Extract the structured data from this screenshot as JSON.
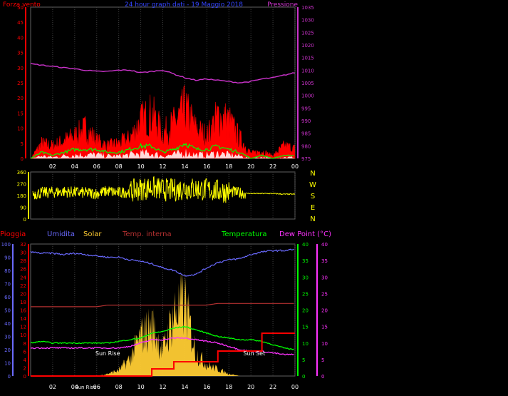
{
  "title": "24 hour graph dati - 19 Maggio 2018",
  "colors": {
    "wind": "#ff0000",
    "gust": "#ff0000",
    "avg": "#00ff00",
    "calm": "#ffffff",
    "pressure": "#cc33cc",
    "dir": "#ffff00",
    "humidity": "#6a6aff",
    "solar": "#ffcc33",
    "indoor": "#b33030",
    "temperature": "#00ff00",
    "dew": "#ff33ff",
    "rain": "#ff0000",
    "ticks_left_top": "#ff0000",
    "ticks_right_top": "#cc33cc"
  },
  "x_ticks": [
    "02",
    "04",
    "06",
    "08",
    "10",
    "12",
    "14",
    "16",
    "18",
    "20",
    "22",
    "00"
  ],
  "chart_data": [
    {
      "type": "line",
      "name": "wind_pressure",
      "title": "24 hour graph dati - 19 Maggio 2018",
      "y_left_label": "Forza vento",
      "y_right_label": "Pressione",
      "ylim_left": [
        0,
        50
      ],
      "ylim_right": [
        975,
        1035
      ],
      "y_left_ticks": [
        "0",
        "5",
        "10",
        "15",
        "20",
        "25",
        "30",
        "35",
        "40",
        "45",
        "50"
      ],
      "y_right_ticks": [
        "975",
        "980",
        "985",
        "990",
        "995",
        "1000",
        "1005",
        "1010",
        "1015",
        "1020",
        "1025",
        "1030",
        "1035"
      ],
      "hours": [
        0,
        1,
        2,
        3,
        4,
        5,
        6,
        7,
        8,
        9,
        10,
        11,
        12,
        13,
        14,
        15,
        16,
        17,
        18,
        19,
        20,
        21,
        22,
        23,
        24
      ],
      "series": [
        {
          "name": "Pressione",
          "values": [
            1012.5,
            1012.0,
            1011.5,
            1011.0,
            1010.5,
            1010.0,
            1009.5,
            1009.5,
            1010.0,
            1010.0,
            1009.0,
            1009.5,
            1010.0,
            1008.5,
            1007.0,
            1006.0,
            1006.5,
            1006.0,
            1005.5,
            1005.0,
            1005.5,
            1006.5,
            1007.0,
            1008.0,
            1009.0
          ]
        },
        {
          "name": "Raffica",
          "values": [
            0,
            6,
            5,
            7,
            9,
            12,
            7,
            5,
            6,
            8,
            15,
            18,
            10,
            14,
            20,
            12,
            9,
            17,
            15,
            8,
            2,
            3,
            1,
            5,
            4
          ]
        },
        {
          "name": "Media",
          "values": [
            0,
            2,
            1,
            2,
            3,
            3,
            3,
            2,
            2,
            3,
            4,
            4,
            2,
            3,
            5,
            3,
            3,
            4,
            3,
            2,
            0,
            1,
            0,
            1,
            1
          ]
        }
      ]
    },
    {
      "type": "scatter",
      "name": "wind_direction",
      "ylim": [
        0,
        360
      ],
      "y_ticks": [
        "0",
        "90",
        "180",
        "270",
        "360"
      ],
      "compass": [
        "N",
        "W",
        "S",
        "E",
        "N"
      ],
      "hours": [
        0,
        1,
        2,
        3,
        4,
        5,
        6,
        7,
        8,
        9,
        10,
        11,
        12,
        13,
        14,
        15,
        16,
        17,
        18,
        19,
        20,
        21,
        22,
        23,
        24
      ],
      "values": [
        190,
        200,
        205,
        210,
        205,
        200,
        195,
        215,
        200,
        210,
        230,
        240,
        225,
        220,
        235,
        230,
        225,
        215,
        210,
        200,
        195,
        195,
        195,
        190,
        190
      ]
    },
    {
      "type": "line",
      "name": "weather",
      "legend": [
        "Pioggia",
        "Umidita",
        "Solar",
        "Temp. interna",
        "Temperatura",
        "Dew Point (°C)"
      ],
      "ylim_left": [
        0,
        100
      ],
      "ylim_right": [
        0,
        40
      ],
      "y_left_ticks": [
        "0",
        "10",
        "20",
        "30",
        "40",
        "50",
        "60",
        "70",
        "80",
        "90",
        "100"
      ],
      "y_left2_ticks": [
        "0",
        "2",
        "4",
        "6",
        "8",
        "10",
        "12",
        "14",
        "16",
        "18",
        "20",
        "22",
        "24",
        "26",
        "28",
        "30",
        "32"
      ],
      "y_right_ticks": [
        "0",
        "5",
        "10",
        "15",
        "20",
        "25",
        "30",
        "35",
        "40"
      ],
      "annotations": [
        "Sun Rise",
        "Sun Set"
      ],
      "x_extra_label": "Sun Rise",
      "hours": [
        0,
        1,
        2,
        3,
        4,
        5,
        6,
        7,
        8,
        9,
        10,
        11,
        12,
        13,
        14,
        15,
        16,
        17,
        18,
        19,
        20,
        21,
        22,
        23,
        24
      ],
      "series": [
        {
          "name": "Umidita",
          "values": [
            94,
            93,
            93,
            92,
            93,
            92,
            91,
            90,
            90,
            88,
            87,
            85,
            82,
            80,
            76,
            77,
            82,
            86,
            88,
            89,
            92,
            94,
            95,
            95,
            96
          ]
        },
        {
          "name": "Solar",
          "values": [
            0,
            0,
            0,
            0,
            0,
            0,
            0,
            2,
            5,
            15,
            35,
            45,
            22,
            55,
            65,
            20,
            10,
            6,
            2,
            0,
            0,
            0,
            0,
            0,
            0
          ]
        },
        {
          "name": "Temp. interna",
          "values": [
            21.0,
            21.0,
            21.0,
            21.0,
            21.0,
            21.0,
            21.0,
            21.5,
            21.5,
            21.5,
            21.5,
            21.5,
            21.5,
            21.5,
            21.5,
            21.5,
            21.5,
            22,
            22,
            22,
            22,
            22,
            22,
            22,
            22
          ]
        },
        {
          "name": "Temperatura",
          "values": [
            10,
            10.5,
            10,
            10,
            10,
            10,
            10,
            10,
            10.5,
            11,
            11.5,
            13,
            13.5,
            14.5,
            15,
            14,
            13,
            12,
            11.5,
            11,
            11,
            10.5,
            9.5,
            8.5,
            8
          ]
        },
        {
          "name": "Dew Point",
          "values": [
            8.5,
            8.5,
            8.5,
            8.5,
            8.5,
            8.5,
            8.5,
            8.5,
            8.5,
            9,
            10,
            11,
            11,
            11.5,
            11.5,
            11,
            10.5,
            10,
            9,
            8,
            7.5,
            7.5,
            7,
            6.5,
            6.5
          ]
        },
        {
          "name": "Pioggia",
          "values": [
            0,
            0,
            0,
            0,
            0,
            0,
            0,
            0,
            0,
            0,
            0,
            2,
            2,
            4,
            4,
            4,
            4,
            7,
            7,
            7,
            7,
            12,
            12,
            12,
            12
          ]
        }
      ]
    }
  ]
}
